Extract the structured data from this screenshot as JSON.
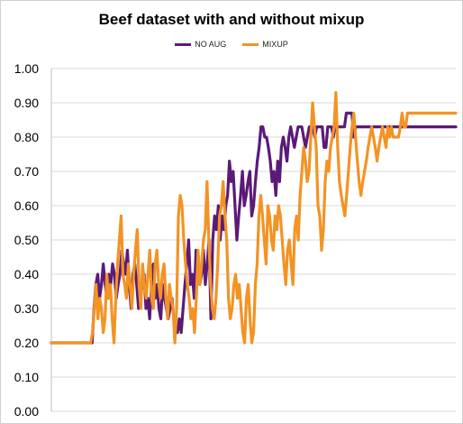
{
  "chart_data": {
    "type": "line",
    "title": "Beef dataset with and without mixup",
    "xlabel": "",
    "ylabel": "",
    "ylim": [
      0,
      1
    ],
    "yticks": [
      "0.00",
      "0.10",
      "0.20",
      "0.30",
      "0.40",
      "0.50",
      "0.60",
      "0.70",
      "0.80",
      "0.90",
      "1.00"
    ],
    "legend_position": "top",
    "grid": true,
    "series": [
      {
        "name": "NO AUG",
        "color": "#5b1a78",
        "values": [
          0.2,
          0.2,
          0.2,
          0.2,
          0.2,
          0.2,
          0.2,
          0.2,
          0.2,
          0.2,
          0.2,
          0.2,
          0.2,
          0.2,
          0.2,
          0.2,
          0.2,
          0.2,
          0.2,
          0.2,
          0.2,
          0.2,
          0.2,
          0.3,
          0.37,
          0.4,
          0.33,
          0.37,
          0.43,
          0.37,
          0.33,
          0.4,
          0.37,
          0.43,
          0.4,
          0.33,
          0.37,
          0.4,
          0.47,
          0.43,
          0.4,
          0.47,
          0.37,
          0.3,
          0.4,
          0.43,
          0.37,
          0.3,
          0.33,
          0.37,
          0.4,
          0.3,
          0.33,
          0.27,
          0.37,
          0.43,
          0.33,
          0.37,
          0.3,
          0.27,
          0.37,
          0.33,
          0.3,
          0.27,
          0.3,
          0.33,
          0.27,
          0.23,
          0.23,
          0.27,
          0.23,
          0.3,
          0.37,
          0.43,
          0.5,
          0.37,
          0.4,
          0.33,
          0.47,
          0.43,
          0.37,
          0.4,
          0.47,
          0.37,
          0.43,
          0.5,
          0.27,
          0.5,
          0.57,
          0.53,
          0.6,
          0.5,
          0.57,
          0.53,
          0.6,
          0.63,
          0.73,
          0.67,
          0.7,
          0.6,
          0.5,
          0.57,
          0.63,
          0.7,
          0.6,
          0.63,
          0.67,
          0.7,
          0.57,
          0.6,
          0.67,
          0.73,
          0.77,
          0.83,
          0.83,
          0.8,
          0.8,
          0.77,
          0.73,
          0.67,
          0.7,
          0.63,
          0.73,
          0.67,
          0.77,
          0.8,
          0.77,
          0.73,
          0.8,
          0.83,
          0.8,
          0.77,
          0.8,
          0.83,
          0.83,
          0.83,
          0.8,
          0.77,
          0.8,
          0.83,
          0.83,
          0.83,
          0.8,
          0.83,
          0.83,
          0.83,
          0.83,
          0.77,
          0.77,
          0.83,
          0.83,
          0.83,
          0.8,
          0.83,
          0.83,
          0.83,
          0.83,
          0.83,
          0.83,
          0.87,
          0.87,
          0.87,
          0.87,
          0.8,
          0.83,
          0.83,
          0.83,
          0.83,
          0.83,
          0.83,
          0.83,
          0.83,
          0.83,
          0.83,
          0.83,
          0.83,
          0.83,
          0.83,
          0.83,
          0.83,
          0.83,
          0.83,
          0.83,
          0.83,
          0.83,
          0.83,
          0.83,
          0.83,
          0.83,
          0.83,
          0.83,
          0.83,
          0.83,
          0.83,
          0.83,
          0.83,
          0.83,
          0.83,
          0.83,
          0.83,
          0.83,
          0.83,
          0.83,
          0.83,
          0.83,
          0.83,
          0.83,
          0.83,
          0.83,
          0.83,
          0.83,
          0.83,
          0.83,
          0.83,
          0.83,
          0.83,
          0.83,
          0.83,
          0.83
        ]
      },
      {
        "name": "MIXUP",
        "color": "#f39324",
        "values": [
          0.2,
          0.2,
          0.2,
          0.2,
          0.2,
          0.2,
          0.2,
          0.2,
          0.2,
          0.2,
          0.2,
          0.2,
          0.2,
          0.2,
          0.2,
          0.2,
          0.2,
          0.2,
          0.2,
          0.2,
          0.2,
          0.2,
          0.2,
          0.23,
          0.3,
          0.37,
          0.27,
          0.33,
          0.3,
          0.23,
          0.27,
          0.4,
          0.33,
          0.37,
          0.27,
          0.2,
          0.33,
          0.43,
          0.5,
          0.57,
          0.4,
          0.37,
          0.33,
          0.43,
          0.37,
          0.3,
          0.4,
          0.47,
          0.53,
          0.37,
          0.3,
          0.43,
          0.37,
          0.33,
          0.4,
          0.47,
          0.33,
          0.3,
          0.43,
          0.47,
          0.37,
          0.33,
          0.4,
          0.43,
          0.33,
          0.27,
          0.37,
          0.33,
          0.3,
          0.2,
          0.3,
          0.57,
          0.63,
          0.6,
          0.5,
          0.43,
          0.37,
          0.33,
          0.27,
          0.3,
          0.23,
          0.33,
          0.47,
          0.37,
          0.43,
          0.5,
          0.53,
          0.67,
          0.5,
          0.37,
          0.3,
          0.27,
          0.33,
          0.43,
          0.57,
          0.6,
          0.67,
          0.57,
          0.5,
          0.33,
          0.27,
          0.3,
          0.37,
          0.4,
          0.33,
          0.37,
          0.3,
          0.23,
          0.2,
          0.33,
          0.37,
          0.27,
          0.2,
          0.23,
          0.37,
          0.43,
          0.57,
          0.63,
          0.57,
          0.5,
          0.43,
          0.6,
          0.57,
          0.5,
          0.47,
          0.57,
          0.53,
          0.6,
          0.57,
          0.5,
          0.43,
          0.37,
          0.47,
          0.5,
          0.43,
          0.37,
          0.53,
          0.57,
          0.5,
          0.63,
          0.7,
          0.77,
          0.73,
          0.67,
          0.7,
          0.8,
          0.9,
          0.83,
          0.77,
          0.6,
          0.57,
          0.47,
          0.53,
          0.67,
          0.73,
          0.7,
          0.77,
          0.8,
          0.83,
          0.93,
          0.77,
          0.67,
          0.63,
          0.6,
          0.57,
          0.63,
          0.7,
          0.77,
          0.83,
          0.87,
          0.8,
          0.73,
          0.67,
          0.63,
          0.67,
          0.7,
          0.73,
          0.77,
          0.8,
          0.83,
          0.8,
          0.77,
          0.73,
          0.77,
          0.8,
          0.83,
          0.8,
          0.77,
          0.83,
          0.8,
          0.83,
          0.8,
          0.8,
          0.8,
          0.8,
          0.83,
          0.87,
          0.83,
          0.83,
          0.87,
          0.87,
          0.87,
          0.87,
          0.87,
          0.87,
          0.87,
          0.87,
          0.87,
          0.87,
          0.87,
          0.87,
          0.87,
          0.87,
          0.87,
          0.87,
          0.87,
          0.87,
          0.87,
          0.87,
          0.87,
          0.87,
          0.87,
          0.87,
          0.87,
          0.87,
          0.87,
          0.87
        ]
      }
    ]
  }
}
